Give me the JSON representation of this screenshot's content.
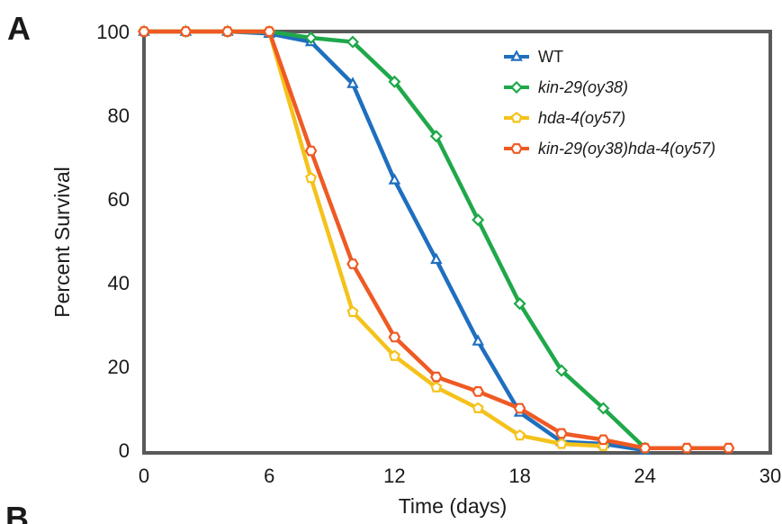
{
  "panel_labels": {
    "a": "A",
    "b": "B"
  },
  "chart_data": {
    "type": "line",
    "title": "",
    "xlabel": "Time (days)",
    "ylabel": "Percent Survival",
    "xlim": [
      0,
      30
    ],
    "ylim": [
      0,
      100
    ],
    "x_ticks": [
      0,
      6,
      12,
      18,
      24,
      30
    ],
    "y_ticks": [
      0,
      20,
      40,
      60,
      80,
      100
    ],
    "grid": false,
    "legend_position": "top-right",
    "series": [
      {
        "name": "WT",
        "italic": false,
        "color": "#1f6fbf",
        "marker": "triangle",
        "x": [
          0,
          2,
          4,
          6,
          8,
          10,
          12,
          14,
          16,
          18,
          20,
          22,
          24
        ],
        "y": [
          100,
          100,
          100,
          99.5,
          97.5,
          87.5,
          64.5,
          45.5,
          26,
          9,
          2,
          1.5,
          0
        ]
      },
      {
        "name": "kin-29(oy38)",
        "italic": true,
        "color": "#1fa84a",
        "marker": "diamond",
        "x": [
          0,
          2,
          4,
          6,
          8,
          10,
          12,
          14,
          16,
          18,
          20,
          22,
          24
        ],
        "y": [
          100,
          100,
          100,
          100,
          98.5,
          97.5,
          88,
          75,
          55,
          35,
          19,
          10,
          0.5
        ]
      },
      {
        "name": "hda-4(oy57)",
        "italic": true,
        "color": "#f5c21b",
        "marker": "pentagon",
        "x": [
          0,
          2,
          4,
          6,
          8,
          10,
          12,
          14,
          16,
          18,
          20,
          22
        ],
        "y": [
          100,
          100,
          100,
          100,
          65,
          33,
          22.5,
          15,
          10,
          3.5,
          1.5,
          1
        ]
      },
      {
        "name": "kin-29(oy38)hda-4(oy57)",
        "italic": true,
        "color": "#ef5a24",
        "marker": "hexagon",
        "x": [
          0,
          2,
          4,
          6,
          8,
          10,
          12,
          14,
          16,
          18,
          20,
          22,
          24,
          26,
          28
        ],
        "y": [
          100,
          100,
          100,
          100,
          71.5,
          44.5,
          27,
          17.5,
          14,
          10,
          4,
          2.5,
          0.5,
          0.5,
          0.5
        ]
      }
    ]
  }
}
